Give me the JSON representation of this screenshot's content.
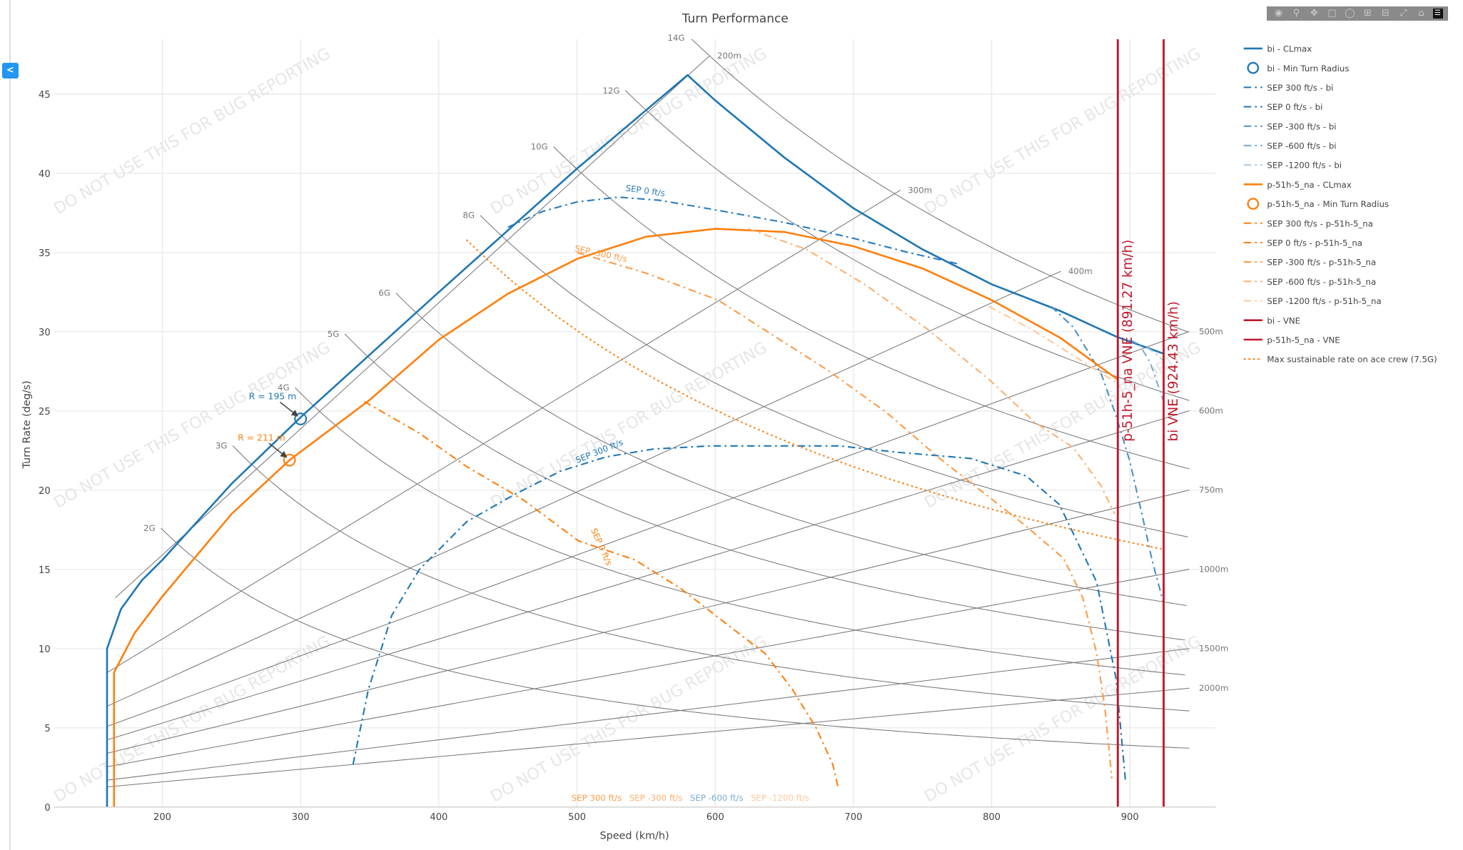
{
  "sidebar": {
    "collapse_label": "<"
  },
  "toolbar": {
    "icons": [
      "camera-icon",
      "zoom-icon",
      "pan-icon",
      "box-select-icon",
      "lasso-icon",
      "zoom-in-icon",
      "zoom-out-icon",
      "autoscale-icon",
      "home-icon",
      "plotly-logo-icon"
    ]
  },
  "watermark": "DO NOT USE THIS FOR BUG REPORTING",
  "chart_data": {
    "type": "line",
    "title": "Turn Performance",
    "xlabel": "Speed (km/h)",
    "ylabel": "Turn Rate (deg/s)",
    "xlim": [
      122,
      962
    ],
    "ylim": [
      0,
      48.5
    ],
    "xticks": [
      200,
      300,
      400,
      500,
      600,
      700,
      800,
      900
    ],
    "yticks": [
      0,
      5,
      10,
      15,
      20,
      25,
      30,
      35,
      40,
      45
    ],
    "grid": true,
    "legend_position": "right",
    "load_factor_lines": [
      {
        "label": "2G",
        "n": 2,
        "from": 199
      },
      {
        "label": "3G",
        "n": 3,
        "from": 251
      },
      {
        "label": "4G",
        "n": 4,
        "from": 296
      },
      {
        "label": "5G",
        "n": 5,
        "from": 332
      },
      {
        "label": "6G",
        "n": 6,
        "from": 369
      },
      {
        "label": "8G",
        "n": 8,
        "from": 430
      },
      {
        "label": "10G",
        "n": 10,
        "from": 483
      },
      {
        "label": "12G",
        "n": 12,
        "from": 535
      },
      {
        "label": "14G",
        "n": 14,
        "from": 582
      }
    ],
    "radius_lines": [
      {
        "label": "200m",
        "r": 200,
        "from": 166,
        "to": 596
      },
      {
        "label": "300m",
        "r": 300,
        "from": 160,
        "to": 734
      },
      {
        "label": "400m",
        "r": 400,
        "from": 160,
        "to": 850
      },
      {
        "label": "500m",
        "r": 500,
        "from": 160,
        "to": 943
      },
      {
        "label": "600m",
        "r": 600,
        "from": 160,
        "to": 943
      },
      {
        "label": "750m",
        "r": 750,
        "from": 160,
        "to": 943
      },
      {
        "label": "1000m",
        "r": 1000,
        "from": 160,
        "to": 943
      },
      {
        "label": "1500m",
        "r": 1500,
        "from": 160,
        "to": 943
      },
      {
        "label": "2000m",
        "r": 2000,
        "from": 160,
        "to": 943
      }
    ],
    "series": [
      {
        "name": "bi - CLmax",
        "color": "#1f77b4",
        "style": "solid",
        "points": [
          [
            160,
            0
          ],
          [
            160,
            10
          ],
          [
            170,
            12.5
          ],
          [
            185,
            14.3
          ],
          [
            200,
            15.6
          ],
          [
            250,
            20.4
          ],
          [
            300,
            24.6
          ],
          [
            400,
            32.5
          ],
          [
            500,
            40.3
          ],
          [
            580,
            46.2
          ],
          [
            600,
            44.6
          ],
          [
            650,
            41
          ],
          [
            700,
            37.8
          ],
          [
            750,
            35.2
          ],
          [
            800,
            33
          ],
          [
            850,
            31.3
          ],
          [
            890,
            29.7
          ],
          [
            925,
            28.6
          ]
        ]
      },
      {
        "name": "bi - Min Turn Radius",
        "color": "#1f77b4",
        "style": "marker",
        "points": [
          [
            300,
            24.5
          ]
        ]
      },
      {
        "name": "SEP 300 ft/s - bi",
        "color": "#1f77b4",
        "style": "dashdot",
        "points": [
          [
            338,
            2.7
          ],
          [
            349,
            7.4
          ],
          [
            366,
            12.1
          ],
          [
            386,
            15
          ],
          [
            420,
            18
          ],
          [
            454,
            19.7
          ],
          [
            488,
            21.2
          ],
          [
            521,
            22.1
          ],
          [
            555,
            22.6
          ],
          [
            596,
            22.8
          ],
          [
            643,
            22.8
          ],
          [
            690,
            22.8
          ],
          [
            731,
            22.4
          ],
          [
            785,
            22
          ],
          [
            825,
            20.9
          ],
          [
            849,
            19.1
          ],
          [
            876,
            14.2
          ],
          [
            890,
            8.1
          ],
          [
            897,
            1.5
          ]
        ]
      },
      {
        "name": "SEP 0 ft/s - bi",
        "color": "#2a7bbb",
        "style": "dashdot",
        "points": [
          [
            450,
            36.6
          ],
          [
            475,
            37.6
          ],
          [
            500,
            38.2
          ],
          [
            530,
            38.5
          ],
          [
            560,
            38.3
          ],
          [
            600,
            37.7
          ],
          [
            650,
            36.9
          ],
          [
            700,
            35.9
          ],
          [
            740,
            35
          ],
          [
            775,
            34.3
          ]
        ]
      },
      {
        "name": "SEP -300 ft/s - bi",
        "color": "#4a90c4",
        "style": "dashdot",
        "points": [
          [
            843,
            31.6
          ],
          [
            859,
            30.3
          ],
          [
            879,
            27.4
          ],
          [
            890,
            24.7
          ],
          [
            900,
            21.8
          ],
          [
            910,
            18
          ],
          [
            916,
            15.6
          ],
          [
            924,
            13
          ]
        ]
      },
      {
        "name": "SEP -600 ft/s - bi",
        "color": "#7aaed4",
        "style": "dashdot",
        "points": [
          [
            900,
            29.5
          ],
          [
            907,
            29.2
          ],
          [
            915,
            28
          ],
          [
            924,
            25.7
          ]
        ]
      },
      {
        "name": "SEP -1200 ft/s - bi",
        "color": "#a9c9e4",
        "style": "dashdot",
        "points": [
          [
            912,
            29
          ],
          [
            918,
            28.7
          ],
          [
            924,
            28.2
          ]
        ]
      },
      {
        "name": "p-51h-5_na - CLmax",
        "color": "#ff7f0e",
        "style": "solid",
        "points": [
          [
            165,
            0
          ],
          [
            165,
            8.5
          ],
          [
            180,
            11
          ],
          [
            200,
            13.3
          ],
          [
            250,
            18.5
          ],
          [
            292,
            21.9
          ],
          [
            350,
            25.7
          ],
          [
            400,
            29.5
          ],
          [
            450,
            32.4
          ],
          [
            500,
            34.6
          ],
          [
            550,
            36
          ],
          [
            600,
            36.5
          ],
          [
            650,
            36.3
          ],
          [
            700,
            35.4
          ],
          [
            750,
            34
          ],
          [
            800,
            32
          ],
          [
            850,
            29.6
          ],
          [
            891,
            27
          ]
        ]
      },
      {
        "name": "p-51h-5_na - Min Turn Radius",
        "color": "#ff7f0e",
        "style": "marker",
        "points": [
          [
            292,
            21.9
          ]
        ]
      },
      {
        "name": "SEP 300 ft/s - p-51h-5_na",
        "color": "#ff7f0e",
        "style": "dashdot",
        "points": []
      },
      {
        "name": "SEP 0 ft/s - p-51h-5_na",
        "color": "#ff7f0e",
        "style": "dashdot",
        "points": [
          [
            346,
            25.6
          ],
          [
            386,
            23.6
          ],
          [
            420,
            21.5
          ],
          [
            461,
            19.4
          ],
          [
            501,
            16.8
          ],
          [
            542,
            15.6
          ],
          [
            575,
            13.8
          ],
          [
            609,
            11.5
          ],
          [
            636,
            9.7
          ],
          [
            656,
            7.4
          ],
          [
            673,
            5
          ],
          [
            685,
            2.7
          ],
          [
            689,
            1.2
          ]
        ]
      },
      {
        "name": "SEP -300 ft/s - p-51h-5_na",
        "color": "#ff9a45",
        "style": "dashdot",
        "points": [
          [
            500,
            35
          ],
          [
            508,
            34.8
          ],
          [
            550,
            33.7
          ],
          [
            602,
            32
          ],
          [
            681,
            27.6
          ],
          [
            724,
            24.9
          ],
          [
            761,
            22.1
          ],
          [
            824,
            17.8
          ],
          [
            852,
            15.7
          ],
          [
            866,
            13.2
          ],
          [
            876,
            9.7
          ],
          [
            882,
            6.2
          ],
          [
            887,
            1.8
          ]
        ]
      },
      {
        "name": "SEP -600 ft/s - p-51h-5_na",
        "color": "#ffb070",
        "style": "dashdot",
        "points": [
          [
            624,
            36.5
          ],
          [
            666,
            35.2
          ],
          [
            708,
            33
          ],
          [
            753,
            30.2
          ],
          [
            798,
            27
          ],
          [
            831,
            24.3
          ],
          [
            859,
            22.7
          ],
          [
            879,
            20.3
          ],
          [
            889,
            18.5
          ]
        ]
      },
      {
        "name": "SEP -1200 ft/s - p-51h-5_na",
        "color": "#ffc89a",
        "style": "dashdot",
        "points": [
          [
            798,
            31.6
          ],
          [
            830,
            30.1
          ],
          [
            850,
            29
          ],
          [
            870,
            27.9
          ],
          [
            890,
            26.8
          ]
        ]
      },
      {
        "name": "bi - VNE",
        "color": "#c0182b",
        "style": "vline",
        "x": 924.43,
        "label": "bi VNE (924.43 km/h)"
      },
      {
        "name": "p-51h-5_na - VNE",
        "color": "#c0182b",
        "style": "vline",
        "x": 891.27,
        "label": "p-51h-5_na VNE (891.27 km/h)"
      },
      {
        "name": "Max sustainable rate on ace crew (7.5G)",
        "color": "#ff7f0e",
        "style": "dotted",
        "n": 7.5,
        "from": 420,
        "to": 925
      }
    ],
    "annotations": [
      {
        "text": "R = 195 m",
        "color": "#1f77b4",
        "at": [
          300,
          24.5
        ]
      },
      {
        "text": "R = 211 m",
        "color": "#ff7f0e",
        "at": [
          292,
          21.9
        ]
      }
    ],
    "curve_labels": [
      {
        "text": "SEP 0 ft/s",
        "color": "#2a7bbb",
        "at": [
          535,
          38.9
        ],
        "angle": 8
      },
      {
        "text": "SEP -300 ft/s",
        "color": "#ff9a45",
        "at": [
          498,
          35.1
        ],
        "angle": 12
      },
      {
        "text": "SEP 300 ft/s",
        "color": "#1f77b4",
        "at": [
          500,
          21.7
        ],
        "angle": -22
      },
      {
        "text": "SEP 0 ft/s",
        "color": "#ff7f0e",
        "at": [
          510,
          17.5
        ],
        "angle": 66
      },
      {
        "text": "SEP 300 ft/s",
        "color": "#ff9a45",
        "at": [
          496,
          0.4
        ],
        "angle": 0
      },
      {
        "text": "SEP -300 ft/s",
        "color": "#ffb070",
        "at": [
          500,
          0.4
        ],
        "angle": 0
      },
      {
        "text": "SEP -600 ft/s",
        "color": "#7aaed4",
        "at": [
          503,
          0.4
        ],
        "angle": 0
      },
      {
        "text": "SEP -1200 ft/s",
        "color": "#ffc89a",
        "at": [
          505,
          0.4
        ],
        "angle": 0
      }
    ]
  }
}
